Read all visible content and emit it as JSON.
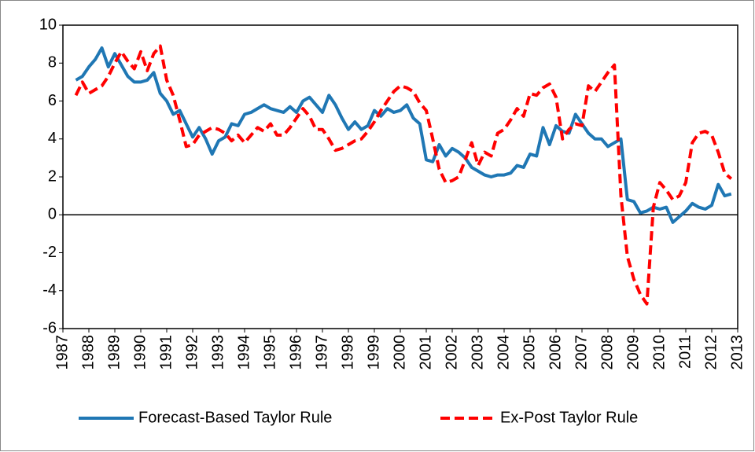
{
  "chart_data": {
    "type": "line",
    "x": [
      1987.5,
      1987.75,
      1988,
      1988.25,
      1988.5,
      1988.75,
      1989,
      1989.25,
      1989.5,
      1989.75,
      1990,
      1990.25,
      1990.5,
      1990.75,
      1991,
      1991.25,
      1991.5,
      1991.75,
      1992,
      1992.25,
      1992.5,
      1992.75,
      1993,
      1993.25,
      1993.5,
      1993.75,
      1994,
      1994.25,
      1994.5,
      1994.75,
      1995,
      1995.25,
      1995.5,
      1995.75,
      1996,
      1996.25,
      1996.5,
      1996.75,
      1997,
      1997.25,
      1997.5,
      1997.75,
      1998,
      1998.25,
      1998.5,
      1998.75,
      1999,
      1999.25,
      1999.5,
      1999.75,
      2000,
      2000.25,
      2000.5,
      2000.75,
      2001,
      2001.25,
      2001.5,
      2001.75,
      2002,
      2002.25,
      2002.5,
      2002.75,
      2003,
      2003.25,
      2003.5,
      2003.75,
      2004,
      2004.25,
      2004.5,
      2004.75,
      2005,
      2005.25,
      2005.5,
      2005.75,
      2006,
      2006.25,
      2006.5,
      2006.75,
      2007,
      2007.25,
      2007.5,
      2007.75,
      2008,
      2008.25,
      2008.5,
      2008.75,
      2009,
      2009.25,
      2009.5,
      2009.75,
      2010,
      2010.25,
      2010.5,
      2010.75,
      2011,
      2011.25,
      2011.5,
      2011.75,
      2012,
      2012.25,
      2012.5,
      2012.75
    ],
    "series": [
      {
        "name": "Forecast-Based Taylor Rule",
        "color": "#1f77b4",
        "dashed": false,
        "values": [
          7.1,
          7.3,
          7.8,
          8.2,
          8.8,
          7.8,
          8.5,
          7.9,
          7.3,
          7.0,
          7.0,
          7.1,
          7.5,
          6.4,
          6.0,
          5.3,
          5.5,
          4.8,
          4.1,
          4.6,
          4.0,
          3.2,
          3.9,
          4.1,
          4.8,
          4.7,
          5.3,
          5.4,
          5.6,
          5.8,
          5.6,
          5.5,
          5.4,
          5.7,
          5.4,
          6.0,
          6.2,
          5.8,
          5.4,
          6.3,
          5.8,
          5.1,
          4.5,
          4.9,
          4.5,
          4.7,
          5.5,
          5.2,
          5.6,
          5.4,
          5.5,
          5.8,
          5.1,
          4.8,
          2.9,
          2.8,
          3.7,
          3.1,
          3.5,
          3.3,
          3.0,
          2.5,
          2.3,
          2.1,
          2.0,
          2.1,
          2.1,
          2.2,
          2.6,
          2.5,
          3.2,
          3.1,
          4.6,
          3.7,
          4.7,
          4.4,
          4.3,
          5.3,
          4.8,
          4.3,
          4.0,
          4.0,
          3.6,
          3.8,
          4.0,
          0.8,
          0.7,
          0.1,
          0.2,
          0.4,
          0.3,
          0.4,
          -0.4,
          -0.1,
          0.2,
          0.6,
          0.4,
          0.3,
          0.5,
          1.6,
          1.0,
          1.1
        ]
      },
      {
        "name": "Ex-Post Taylor Rule",
        "color": "#ff0000",
        "dashed": true,
        "values": [
          6.3,
          7.0,
          6.4,
          6.6,
          6.8,
          7.3,
          8.0,
          8.6,
          8.1,
          7.7,
          8.6,
          7.6,
          8.5,
          8.9,
          7.1,
          6.3,
          5.0,
          3.6,
          3.7,
          4.2,
          4.4,
          4.6,
          4.5,
          4.3,
          3.9,
          4.2,
          3.8,
          4.2,
          4.6,
          4.4,
          4.8,
          4.2,
          4.2,
          4.6,
          5.1,
          5.6,
          5.2,
          4.5,
          4.5,
          4.0,
          3.4,
          3.5,
          3.7,
          3.9,
          4.0,
          4.4,
          4.9,
          5.5,
          6.0,
          6.5,
          6.8,
          6.7,
          6.5,
          5.9,
          5.5,
          4.0,
          2.4,
          1.7,
          1.8,
          2.0,
          2.9,
          3.8,
          2.6,
          3.3,
          3.1,
          4.3,
          4.5,
          5.0,
          5.6,
          5.2,
          6.4,
          6.3,
          6.7,
          6.9,
          6.2,
          4.0,
          4.5,
          4.8,
          4.7,
          6.8,
          6.5,
          7.0,
          7.5,
          7.9,
          1.0,
          -2.2,
          -3.4,
          -4.2,
          -4.7,
          0.4,
          1.7,
          1.3,
          0.8,
          1.0,
          1.7,
          3.8,
          4.3,
          4.4,
          4.2,
          3.3,
          2.2,
          1.9
        ]
      }
    ],
    "xlim": [
      1987,
      2013
    ],
    "xticks": [
      1987,
      1988,
      1989,
      1990,
      1991,
      1992,
      1993,
      1994,
      1995,
      1996,
      1997,
      1998,
      1999,
      2000,
      2001,
      2002,
      2003,
      2004,
      2005,
      2006,
      2007,
      2008,
      2009,
      2010,
      2011,
      2012,
      2013
    ],
    "ylim": [
      -6,
      10
    ],
    "yticks": [
      -6,
      -4,
      -2,
      0,
      2,
      4,
      6,
      8,
      10
    ],
    "legend": "bottom",
    "grid": false
  }
}
